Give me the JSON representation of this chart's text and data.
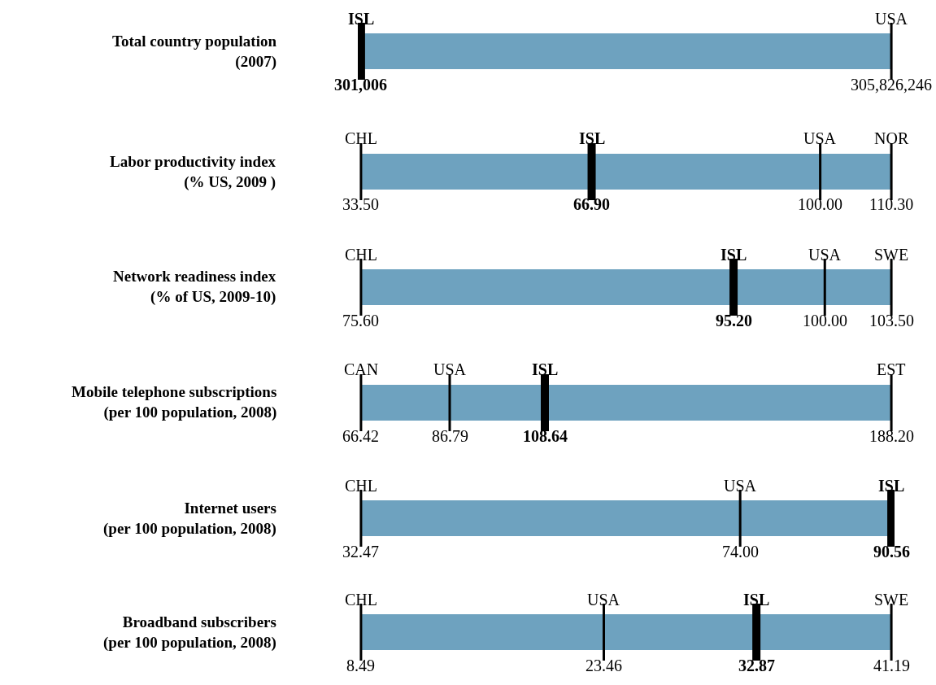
{
  "chart_data": [
    {
      "type": "other",
      "title": "Total country population\n(2007)",
      "bands": [
        {
          "axis": "x",
          "color": "#6ea2bf"
        }
      ],
      "series": [
        {
          "name": "USA",
          "color": "#000000",
          "values": [
            305826246
          ],
          "value_labels": [
            "305,826,246"
          ]
        },
        {
          "name": "ISL",
          "color": "#000000",
          "values": [
            301006
          ],
          "value_labels": [
            "301,006"
          ]
        }
      ]
    },
    {
      "type": "other",
      "title": "Labor productivity index\n(% US, 2009 )",
      "bands": [
        {
          "axis": "x",
          "color": "#6ea2bf"
        }
      ],
      "series": [
        {
          "name": "CHL",
          "color": "#000000",
          "values": [
            33.5
          ],
          "value_labels": [
            "33.50"
          ]
        },
        {
          "name": "USA",
          "color": "#000000",
          "values": [
            100.0
          ],
          "value_labels": [
            "100.00"
          ]
        },
        {
          "name": "NOR",
          "color": "#000000",
          "values": [
            110.3
          ],
          "value_labels": [
            "110.30"
          ]
        },
        {
          "name": "ISL",
          "color": "#000000",
          "values": [
            66.9
          ],
          "value_labels": [
            "66.90"
          ]
        }
      ]
    },
    {
      "type": "other",
      "title": "Network readiness index\n(% of US, 2009-10)",
      "bands": [
        {
          "axis": "x",
          "color": "#6ea2bf"
        }
      ],
      "series": [
        {
          "name": "CHL",
          "color": "#000000",
          "values": [
            75.6
          ],
          "value_labels": [
            "75.60"
          ]
        },
        {
          "name": "USA",
          "color": "#000000",
          "values": [
            100.0
          ],
          "value_labels": [
            "100.00"
          ]
        },
        {
          "name": "SWE",
          "color": "#000000",
          "values": [
            103.5
          ],
          "value_labels": [
            "103.50"
          ]
        },
        {
          "name": "ISL",
          "color": "#000000",
          "values": [
            95.2
          ],
          "value_labels": [
            "95.20"
          ]
        }
      ]
    },
    {
      "type": "other",
      "title": "Mobile telephone subscriptions\n(per 100 population, 2008)",
      "bands": [
        {
          "axis": "x",
          "color": "#6ea2bf"
        }
      ],
      "series": [
        {
          "name": "CAN",
          "color": "#000000",
          "values": [
            66.42
          ],
          "value_labels": [
            "66.42"
          ]
        },
        {
          "name": "USA",
          "color": "#000000",
          "values": [
            86.79
          ],
          "value_labels": [
            "86.79"
          ]
        },
        {
          "name": "EST",
          "color": "#000000",
          "values": [
            188.2
          ],
          "value_labels": [
            "188.20"
          ]
        },
        {
          "name": "ISL",
          "color": "#000000",
          "values": [
            108.64
          ],
          "value_labels": [
            "108.64"
          ]
        }
      ]
    },
    {
      "type": "other",
      "title": "Internet users\n(per 100 population, 2008)",
      "bands": [
        {
          "axis": "x",
          "color": "#6ea2bf"
        }
      ],
      "series": [
        {
          "name": "CHL",
          "color": "#000000",
          "values": [
            32.47
          ],
          "value_labels": [
            "32.47"
          ]
        },
        {
          "name": "USA",
          "color": "#000000",
          "values": [
            74.0
          ],
          "value_labels": [
            "74.00"
          ]
        },
        {
          "name": "ISL",
          "color": "#000000",
          "values": [
            90.56
          ],
          "value_labels": [
            "90.56"
          ]
        }
      ]
    },
    {
      "type": "other",
      "title": "Broadband subscribers\n(per 100 population, 2008)",
      "bands": [
        {
          "axis": "x",
          "color": "#6ea2bf"
        }
      ],
      "series": [
        {
          "name": "CHL",
          "color": "#000000",
          "values": [
            8.49
          ],
          "value_labels": [
            "8.49"
          ]
        },
        {
          "name": "USA",
          "color": "#000000",
          "values": [
            23.46
          ],
          "value_labels": [
            "23.46"
          ]
        },
        {
          "name": "SWE",
          "color": "#000000",
          "values": [
            41.19
          ],
          "value_labels": [
            "41.19"
          ]
        },
        {
          "name": "ISL",
          "color": "#000000",
          "values": [
            32.87
          ],
          "value_labels": [
            "32.87"
          ]
        }
      ]
    }
  ]
}
